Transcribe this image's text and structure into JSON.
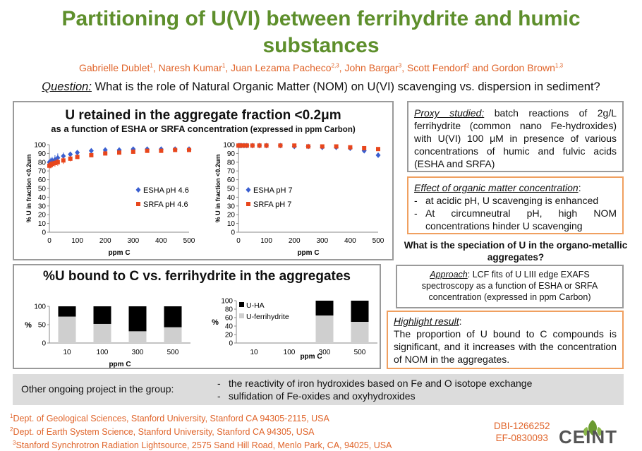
{
  "header": {
    "title_line1": "Partitioning of U(VI) between ferrihydrite and humic",
    "title_line2": "substances",
    "authors": [
      {
        "name": "Gabrielle Dublet",
        "sup": "1"
      },
      {
        "name": "Naresh Kumar",
        "sup": "1"
      },
      {
        "name": "Juan Lezama Pacheco",
        "sup": "2,3"
      },
      {
        "name": "John Bargar",
        "sup": "3"
      },
      {
        "name": "Scott Fendorf",
        "sup": "2"
      },
      {
        "name": "Gordon Brown",
        "sup": "1,3"
      }
    ],
    "authors_sep": ", ",
    "authors_and": " and ",
    "question_label": "Question:",
    "question_text": " What is the role of Natural Organic Matter (NOM) on U(VI) scavenging vs. dispersion in sediment?"
  },
  "panel1": {
    "title": "U retained in the aggregate fraction <0.2μm",
    "subtitle": "as a function of ESHA or SRFA concentration",
    "subtitle_small": " (expressed in ppm Carbon)"
  },
  "panel2": {
    "title": "%U bound to C vs. ferrihydrite in the aggregates"
  },
  "right": {
    "proxy_label": "Proxy studied:",
    "proxy_text": " batch reactions of 2g/L ferrihydrite (common nano Fe-hydroxides) with U(VI) 100 μM in presence of various concentrations of humic and fulvic acids (ESHA and SRFA)",
    "effect_label": "Effect of organic matter concentration",
    "effect_colon": ":",
    "effect_items": [
      "at acidic pH, U scavenging is enhanced",
      "At circumneutral pH, high NOM concentrations hinder U scavenging"
    ],
    "speciation_question": "What is the speciation of U in the organo-metallic aggregates?",
    "approach_label": "Approach",
    "approach_text": ": LCF fits of U LIII edge EXAFS spectroscopy as a function of ESHA or SRFA concentration (expressed in ppm Carbon)",
    "highlight_label": "Highlight result",
    "highlight_colon": ":",
    "highlight_text": "The proportion of U bound to C compounds is significant, and it increases with the concentration of NOM in the aggregates."
  },
  "ongoing": {
    "label": "Other ongoing project in the group:",
    "items": [
      "the reactivity of iron hydroxides based on Fe and O isotope exchange",
      "sulfidation of Fe-oxides and oxyhydroxides"
    ]
  },
  "footer": {
    "affiliations": [
      {
        "sup": "1",
        "text": "Dept. of Geological Sciences, Stanford University, Stanford CA 94305-2115, USA"
      },
      {
        "sup": "2",
        "text": "Dept. of Earth System Science, Stanford University, Stanford CA 94305, USA"
      },
      {
        "sup": "3",
        "text": "Stanford Synchrotron Radiation Lightsource, 2575 Sand Hill Road, Menlo Park, CA, 94025, USA"
      }
    ],
    "grant1": "DBI-1266252",
    "grant2": "EF-0830093",
    "logo_text": "CEINT"
  },
  "colors": {
    "title_green": "#5e8f2c",
    "accent_orange": "#e0642a",
    "esha_blue": "#3a5fd0",
    "srfa_red": "#e8461c",
    "bar_black": "#000000",
    "bar_grey": "#cfcfcf"
  },
  "chart_data": [
    {
      "type": "scatter",
      "id": "esha_srfa_ph46",
      "title": "",
      "xlabel": "ppm C",
      "ylabel": "% U in fraction <0.2um",
      "xlim": [
        0,
        500
      ],
      "ylim": [
        0,
        100
      ],
      "xticks": [
        0,
        100,
        200,
        300,
        400,
        500
      ],
      "yticks": [
        0,
        10,
        20,
        30,
        40,
        50,
        60,
        70,
        80,
        90,
        100
      ],
      "legend_position": "center-right",
      "series": [
        {
          "name": "ESHA pH 4.6",
          "marker": "diamond",
          "x": [
            0,
            5,
            10,
            20,
            30,
            50,
            75,
            100,
            150,
            200,
            250,
            300,
            350,
            400,
            450,
            500
          ],
          "y": [
            80,
            81,
            82,
            83,
            85,
            87,
            89,
            91,
            93,
            94,
            94,
            95,
            95,
            95,
            95,
            95
          ],
          "err": [
            4,
            4,
            4,
            5,
            5,
            4,
            3,
            2,
            2,
            2,
            2,
            2,
            2,
            2,
            2,
            2
          ]
        },
        {
          "name": "SRFA pH 4.6",
          "marker": "square",
          "x": [
            0,
            5,
            10,
            20,
            30,
            50,
            75,
            100,
            150,
            200,
            250,
            300,
            350,
            400,
            450,
            500
          ],
          "y": [
            76,
            77,
            78,
            79,
            80,
            82,
            84,
            86,
            88,
            90,
            91,
            92,
            93,
            93,
            94,
            94
          ],
          "err": [
            4,
            4,
            4,
            4,
            4,
            4,
            3,
            2,
            2,
            2,
            2,
            2,
            2,
            2,
            2,
            2
          ]
        }
      ]
    },
    {
      "type": "scatter",
      "id": "esha_srfa_ph7",
      "title": "",
      "xlabel": "ppm C",
      "ylabel": "% U in fraction <0.2um",
      "xlim": [
        0,
        500
      ],
      "ylim": [
        0,
        100
      ],
      "xticks": [
        0,
        100,
        200,
        300,
        400,
        500
      ],
      "yticks": [
        0,
        10,
        20,
        30,
        40,
        50,
        60,
        70,
        80,
        90,
        100
      ],
      "legend_position": "center",
      "series": [
        {
          "name": "ESHA pH 7",
          "marker": "diamond",
          "x": [
            0,
            5,
            10,
            20,
            30,
            50,
            75,
            100,
            150,
            200,
            250,
            300,
            350,
            400,
            450,
            500
          ],
          "y": [
            99,
            99,
            99,
            99,
            99,
            99,
            99,
            99,
            99,
            98,
            98,
            97,
            97,
            96,
            93,
            88
          ],
          "err": [
            1,
            1,
            1,
            1,
            1,
            1,
            1,
            1,
            1,
            1,
            1,
            1,
            1,
            1,
            2,
            2
          ]
        },
        {
          "name": "SRFA pH 7",
          "marker": "square",
          "x": [
            0,
            5,
            10,
            20,
            30,
            50,
            75,
            100,
            150,
            200,
            250,
            300,
            350,
            400,
            450,
            500
          ],
          "y": [
            99,
            99,
            99,
            99,
            99,
            99,
            99,
            99,
            99,
            99,
            98,
            98,
            98,
            97,
            96,
            95
          ],
          "err": [
            1,
            1,
            1,
            1,
            1,
            1,
            1,
            1,
            1,
            1,
            1,
            1,
            1,
            1,
            1,
            1
          ]
        }
      ]
    },
    {
      "type": "bar",
      "stacked": true,
      "id": "esha_bars",
      "title": "",
      "xlabel": "ppm C",
      "ylabel": "%",
      "ylim": [
        0,
        100
      ],
      "yticks": [
        0,
        50,
        100
      ],
      "categories": [
        "10",
        "100",
        "300",
        "500"
      ],
      "series": [
        {
          "name": "U-ferrihydrite",
          "values": [
            72,
            52,
            32,
            43
          ]
        },
        {
          "name": "U-HA",
          "values": [
            28,
            48,
            68,
            57
          ]
        }
      ]
    },
    {
      "type": "bar",
      "stacked": true,
      "id": "srfa_bars",
      "title": "",
      "xlabel": "ppm C",
      "ylabel": "%",
      "ylim": [
        0,
        100
      ],
      "yticks": [
        0,
        20,
        40,
        60,
        80,
        100
      ],
      "legend_position": "top-left",
      "categories": [
        "10",
        "100",
        "300",
        "500"
      ],
      "series": [
        {
          "name": "U-ferrihydrite",
          "values": [
            null,
            null,
            65,
            50
          ]
        },
        {
          "name": "U-HA",
          "values": [
            null,
            null,
            35,
            50
          ]
        }
      ],
      "legend_names": [
        "U-HA",
        "U-ferrihydrite"
      ]
    }
  ]
}
